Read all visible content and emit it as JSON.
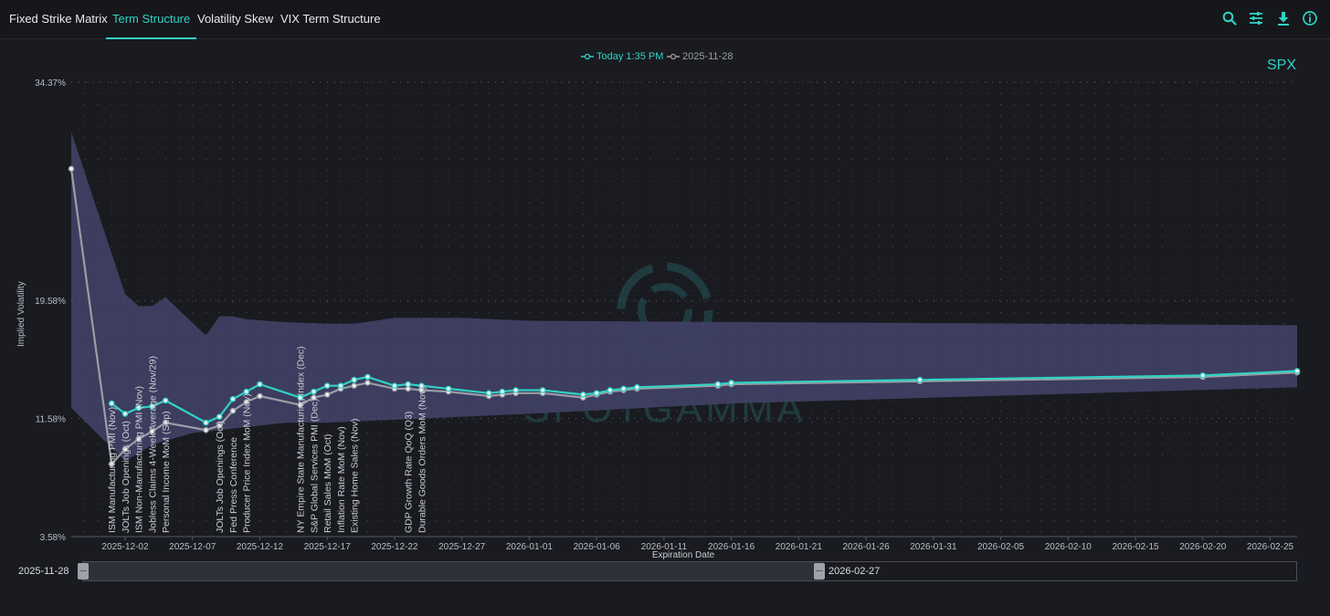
{
  "tabs": [
    {
      "label": "Fixed Strike Matrix",
      "active": false
    },
    {
      "label": "Term Structure",
      "active": true
    },
    {
      "label": "Volatility Skew",
      "active": false
    },
    {
      "label": "VIX Term Structure",
      "active": false
    }
  ],
  "toolbar": {
    "icons": [
      "search-icon",
      "settings-sliders-icon",
      "download-icon",
      "info-icon"
    ]
  },
  "colors": {
    "accent": "#2fd3c5",
    "previous": "#9b9ea6",
    "band": "#3f3f63"
  },
  "legend": [
    {
      "label": "Today 1:35 PM",
      "color": "#2fd3c5"
    },
    {
      "label": "2025-11-28",
      "color": "#9b9ea6"
    }
  ],
  "symbol": "SPX",
  "watermark": "SPOTGAMMA",
  "range_slider": {
    "start_label": "2025-11-28",
    "end_label": "2026-02-27"
  },
  "chart_data": {
    "type": "line",
    "ylabel": "Implied Volatility",
    "xlabel": "Expiration Date",
    "ylim": [
      3.58,
      34.37
    ],
    "yticks": [
      "34.37%",
      "19.58%",
      "11.58%",
      "3.58%"
    ],
    "xlim": [
      "2025-11-28",
      "2026-02-27"
    ],
    "xticks": [
      "2025-12-02",
      "2025-12-07",
      "2025-12-12",
      "2025-12-17",
      "2025-12-22",
      "2025-12-27",
      "2026-01-01",
      "2026-01-06",
      "2026-01-11",
      "2026-01-16",
      "2026-01-21",
      "2026-01-26",
      "2026-01-31",
      "2026-02-05",
      "2026-02-10",
      "2026-02-15",
      "2026-02-20",
      "2026-02-25"
    ],
    "series": [
      {
        "name": "Today 1:35 PM",
        "color": "#2fd3c5",
        "points": [
          [
            "2025-12-01",
            12.6
          ],
          [
            "2025-12-02",
            11.9
          ],
          [
            "2025-12-03",
            12.3
          ],
          [
            "2025-12-04",
            12.4
          ],
          [
            "2025-12-05",
            12.8
          ],
          [
            "2025-12-08",
            11.3
          ],
          [
            "2025-12-09",
            11.7
          ],
          [
            "2025-12-10",
            12.9
          ],
          [
            "2025-12-11",
            13.4
          ],
          [
            "2025-12-12",
            13.9
          ],
          [
            "2025-12-15",
            13.0
          ],
          [
            "2025-12-16",
            13.4
          ],
          [
            "2025-12-17",
            13.8
          ],
          [
            "2025-12-18",
            13.8
          ],
          [
            "2025-12-19",
            14.2
          ],
          [
            "2025-12-20",
            14.4
          ],
          [
            "2025-12-22",
            13.8
          ],
          [
            "2025-12-23",
            13.9
          ],
          [
            "2025-12-24",
            13.8
          ],
          [
            "2025-12-26",
            13.6
          ],
          [
            "2025-12-29",
            13.3
          ],
          [
            "2025-12-30",
            13.4
          ],
          [
            "2025-12-31",
            13.5
          ],
          [
            "2026-01-02",
            13.5
          ],
          [
            "2026-01-05",
            13.2
          ],
          [
            "2026-01-06",
            13.3
          ],
          [
            "2026-01-07",
            13.5
          ],
          [
            "2026-01-08",
            13.6
          ],
          [
            "2026-01-09",
            13.7
          ],
          [
            "2026-01-15",
            13.9
          ],
          [
            "2026-01-16",
            14.0
          ],
          [
            "2026-01-30",
            14.2
          ],
          [
            "2026-02-20",
            14.5
          ],
          [
            "2026-02-27",
            14.8
          ]
        ]
      },
      {
        "name": "2025-11-28",
        "color": "#9b9ea6",
        "points": [
          [
            "2025-11-28",
            28.5
          ],
          [
            "2025-12-01",
            8.5
          ],
          [
            "2025-12-02",
            9.5
          ],
          [
            "2025-12-03",
            10.2
          ],
          [
            "2025-12-04",
            10.7
          ],
          [
            "2025-12-05",
            11.3
          ],
          [
            "2025-12-08",
            10.8
          ],
          [
            "2025-12-09",
            11.1
          ],
          [
            "2025-12-10",
            12.1
          ],
          [
            "2025-12-11",
            12.7
          ],
          [
            "2025-12-12",
            13.1
          ],
          [
            "2025-12-15",
            12.5
          ],
          [
            "2025-12-16",
            13.0
          ],
          [
            "2025-12-17",
            13.2
          ],
          [
            "2025-12-18",
            13.6
          ],
          [
            "2025-12-19",
            13.8
          ],
          [
            "2025-12-20",
            14.0
          ],
          [
            "2025-12-22",
            13.6
          ],
          [
            "2025-12-23",
            13.6
          ],
          [
            "2025-12-24",
            13.5
          ],
          [
            "2025-12-26",
            13.4
          ],
          [
            "2025-12-29",
            13.1
          ],
          [
            "2025-12-30",
            13.2
          ],
          [
            "2025-12-31",
            13.3
          ],
          [
            "2026-01-02",
            13.3
          ],
          [
            "2026-01-05",
            13.0
          ],
          [
            "2026-01-06",
            13.2
          ],
          [
            "2026-01-07",
            13.4
          ],
          [
            "2026-01-08",
            13.5
          ],
          [
            "2026-01-09",
            13.6
          ],
          [
            "2026-01-15",
            13.8
          ],
          [
            "2026-01-16",
            13.9
          ],
          [
            "2026-01-30",
            14.1
          ],
          [
            "2026-02-20",
            14.4
          ],
          [
            "2026-02-27",
            14.7
          ]
        ]
      }
    ],
    "range_band": {
      "upper": [
        [
          "2025-11-28",
          31.0
        ],
        [
          "2025-12-02",
          20.0
        ],
        [
          "2025-12-03",
          19.2
        ],
        [
          "2025-12-04",
          19.2
        ],
        [
          "2025-12-05",
          19.8
        ],
        [
          "2025-12-08",
          17.2
        ],
        [
          "2025-12-09",
          18.5
        ],
        [
          "2025-12-10",
          18.5
        ],
        [
          "2025-12-11",
          18.3
        ],
        [
          "2025-12-14",
          18.1
        ],
        [
          "2025-12-17",
          18.0
        ],
        [
          "2025-12-19",
          18.0
        ],
        [
          "2025-12-22",
          18.4
        ],
        [
          "2025-12-27",
          18.4
        ],
        [
          "2026-01-01",
          18.2
        ],
        [
          "2026-02-27",
          17.9
        ]
      ],
      "lower": [
        [
          "2025-11-28",
          12.3
        ],
        [
          "2025-12-02",
          8.7
        ],
        [
          "2025-12-04",
          9.8
        ],
        [
          "2025-12-07",
          10.6
        ],
        [
          "2025-12-10",
          10.9
        ],
        [
          "2025-12-14",
          11.3
        ],
        [
          "2025-12-17",
          11.3
        ],
        [
          "2025-12-22",
          11.5
        ],
        [
          "2026-01-01",
          11.9
        ],
        [
          "2026-01-16",
          12.6
        ],
        [
          "2026-02-27",
          13.7
        ]
      ]
    },
    "events": [
      {
        "date": "2025-12-01",
        "label": "ISM Manufacturing PMI (Nov)"
      },
      {
        "date": "2025-12-02",
        "label": "JOLTs Job Openings (Oct)"
      },
      {
        "date": "2025-12-03",
        "label": "ISM Non-Manufacturing PMI (Nov)"
      },
      {
        "date": "2025-12-04",
        "label": "Jobless Claims 4-Week Average (Nov/29)"
      },
      {
        "date": "2025-12-05",
        "label": "Personal Income MoM (Sep)"
      },
      {
        "date": "2025-12-09",
        "label": "JOLTs Job Openings (Oct)"
      },
      {
        "date": "2025-12-10",
        "label": "Fed Press Conference"
      },
      {
        "date": "2025-12-11",
        "label": "Producer Price Index MoM (Nov)"
      },
      {
        "date": "2025-12-15",
        "label": "NY Empire State Manufacturing Index (Dec)"
      },
      {
        "date": "2025-12-16",
        "label": "S&P Global Services PMI (Dec)"
      },
      {
        "date": "2025-12-17",
        "label": "Retail Sales MoM (Oct)"
      },
      {
        "date": "2025-12-18",
        "label": "Inflation Rate MoM (Nov)"
      },
      {
        "date": "2025-12-19",
        "label": "Existing Home Sales (Nov)"
      },
      {
        "date": "2025-12-23",
        "label": "GDP Growth Rate QoQ (Q3)"
      },
      {
        "date": "2025-12-24",
        "label": "Durable Goods Orders MoM (Nov)"
      }
    ]
  }
}
